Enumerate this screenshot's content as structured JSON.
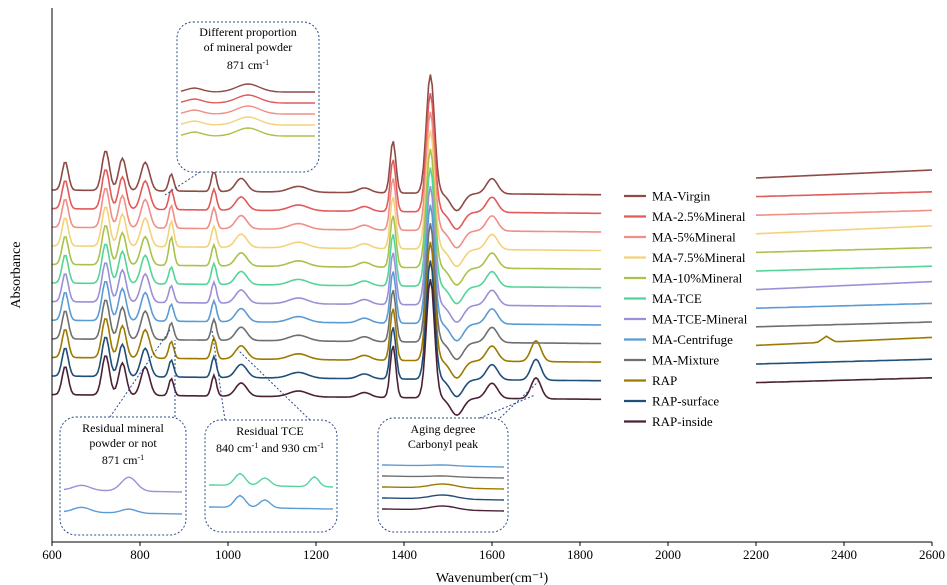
{
  "chart_data": {
    "type": "line",
    "xlabel": "Wavenumber(cm⁻¹)",
    "ylabel": "Absorbance",
    "xlim": [
      600,
      2600
    ],
    "x_ticks": [
      "600",
      "800",
      "1000",
      "1200",
      "1400",
      "1600",
      "1800",
      "2000",
      "2200",
      "2400",
      "2600"
    ],
    "x_break": [
      1850,
      2200
    ],
    "series": [
      {
        "name": "MA-Virgin",
        "color": "#8e4a44",
        "offset": 0
      },
      {
        "name": "MA-2.5%Mineral",
        "color": "#e15a5a",
        "offset": 1
      },
      {
        "name": "MA-5%Mineral",
        "color": "#f08f86",
        "offset": 2
      },
      {
        "name": "MA-7.5%Mineral",
        "color": "#f3d27a",
        "offset": 3
      },
      {
        "name": "MA-10%Mineral",
        "color": "#a9c24a",
        "offset": 4
      },
      {
        "name": "MA-TCE",
        "color": "#55d49a",
        "offset": 5
      },
      {
        "name": "MA-TCE-Mineral",
        "color": "#9b8fd6",
        "offset": 6
      },
      {
        "name": "MA-Centrifuge",
        "color": "#5b9bd5",
        "offset": 7
      },
      {
        "name": "MA-Mixture",
        "color": "#6f6f6f",
        "offset": 8
      },
      {
        "name": "RAP",
        "color": "#9c7a00",
        "offset": 9
      },
      {
        "name": "RAP-surface",
        "color": "#1f4e79",
        "offset": 10
      },
      {
        "name": "RAP-inside",
        "color": "#4a2035",
        "offset": 11
      }
    ],
    "peaks_cm": [
      725,
      760,
      810,
      871,
      968,
      1030,
      1375,
      1460,
      1600,
      1700
    ],
    "annotations": {
      "top": {
        "lines": [
          "Different proportion",
          "of mineral powder"
        ],
        "wn": "871 cm",
        "sup": "-1"
      },
      "residual_mineral": {
        "lines": [
          "Residual mineral",
          "powder or not"
        ],
        "wn": "871 cm",
        "sup": "-1"
      },
      "residual_tce": {
        "title": "Residual TCE",
        "wn_a": "840 cm",
        "wn_b": " and 930 cm",
        "sup": "-1"
      },
      "aging": {
        "lines": [
          "Aging degree",
          "Carbonyl peak"
        ]
      }
    }
  }
}
